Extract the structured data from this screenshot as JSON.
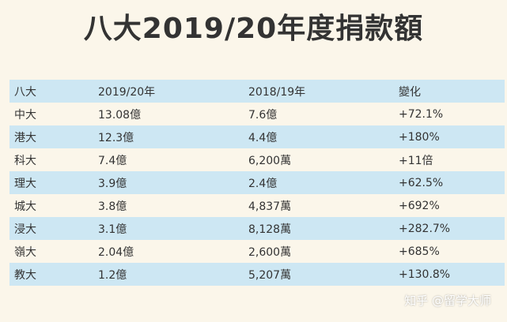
{
  "title": "八大2019/20年度捐款額",
  "table": {
    "headers": [
      "八大",
      "2019/20年",
      "2018/19年",
      "變化"
    ],
    "rows": [
      [
        "中大",
        "13.08億",
        "7.6億",
        "+72.1%"
      ],
      [
        "港大",
        "12.3億",
        "4.4億",
        "+180%"
      ],
      [
        "科大",
        "7.4億",
        "6,200萬",
        "+11倍"
      ],
      [
        "理大",
        "3.9億",
        "2.4億",
        "+62.5%"
      ],
      [
        "城大",
        "3.8億",
        "4,837萬",
        "+692%"
      ],
      [
        "浸大",
        "3.1億",
        "8,128萬",
        "+282.7%"
      ],
      [
        "嶺大",
        "2.04億",
        "2,600萬",
        "+685%"
      ],
      [
        "教大",
        "1.2億",
        "5,207萬",
        "+130.8%"
      ]
    ]
  },
  "watermark": "知乎 @留学大师",
  "colors": {
    "background": "#fbf6ea",
    "stripe": "#cde7f3",
    "text": "#333333"
  }
}
